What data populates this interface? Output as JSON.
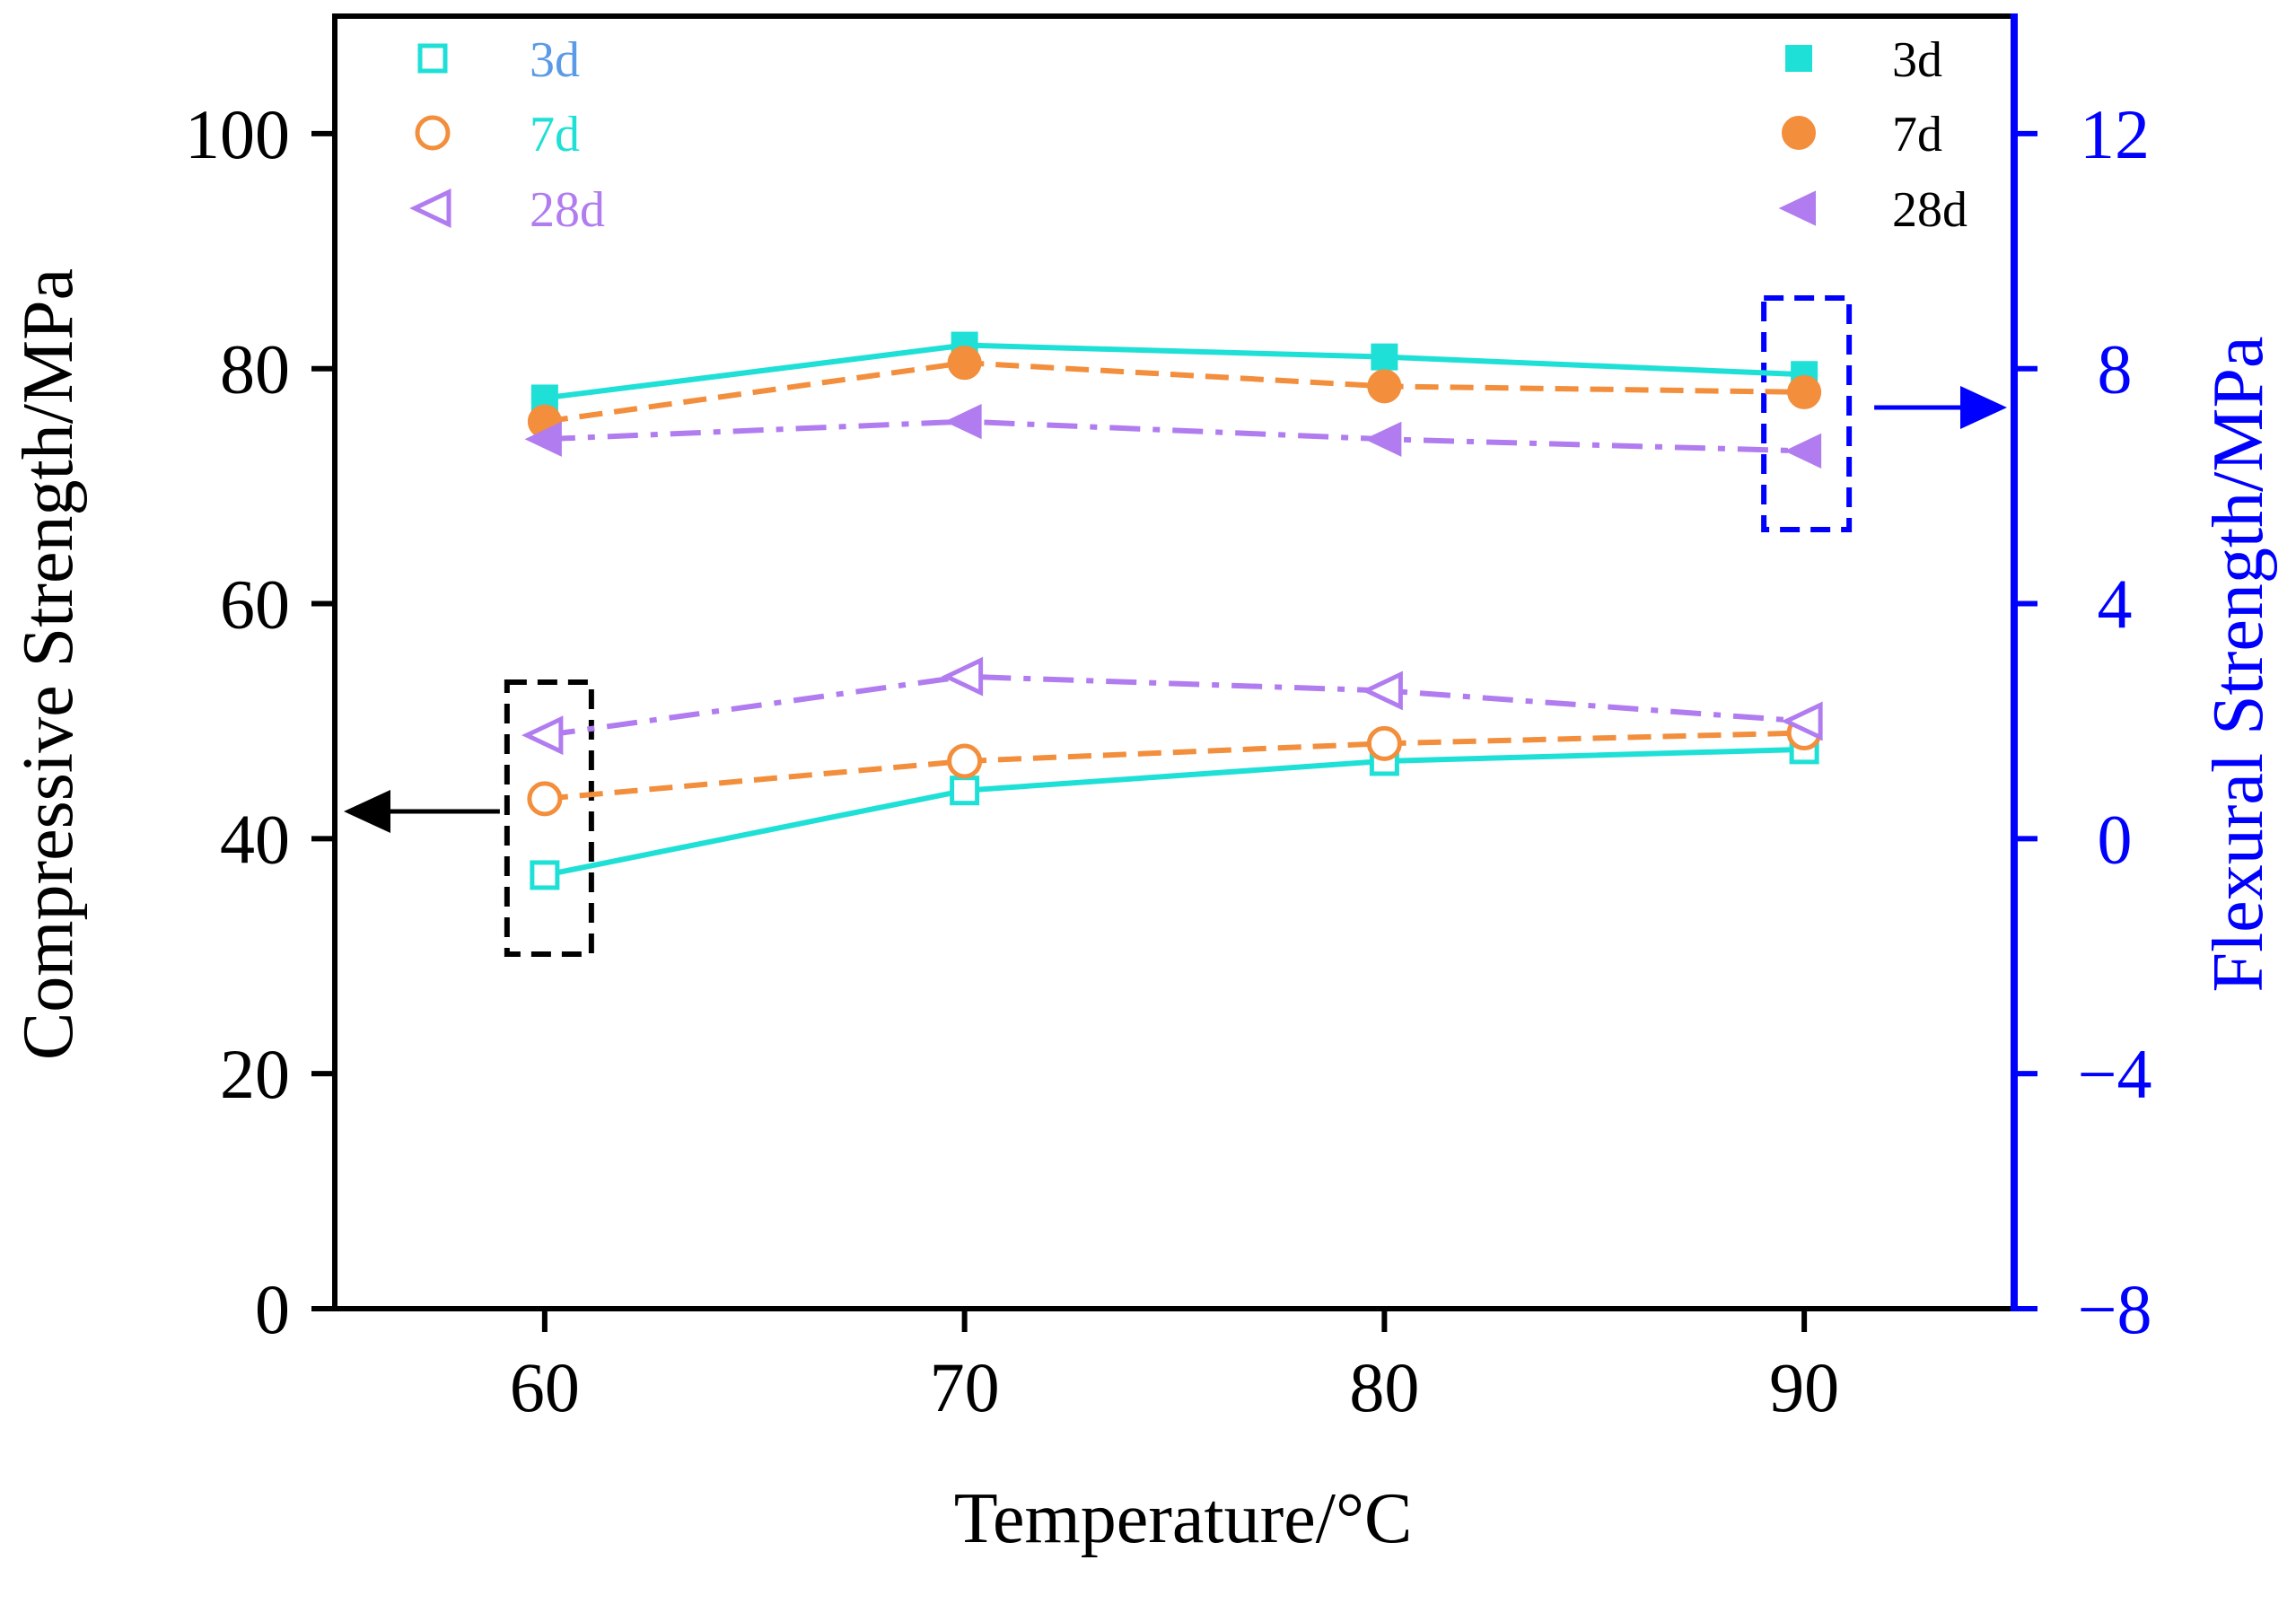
{
  "chart_data": {
    "type": "line",
    "xlabel": "Temperature/°C",
    "ylabel": "Compressive Strength/MPa",
    "y2label": "Flexural Strength/MPa",
    "xlim": [
      55,
      95
    ],
    "ylim": [
      0,
      110
    ],
    "y2lim": [
      -8,
      14
    ],
    "categories": [
      "60",
      "70",
      "80",
      "90"
    ],
    "x": [
      60,
      70,
      80,
      90
    ],
    "xticks": [
      60,
      70,
      80,
      90
    ],
    "yticks": [
      0,
      20,
      40,
      60,
      80,
      100
    ],
    "y2ticks": [
      -8,
      -4,
      0,
      4,
      8,
      12
    ],
    "y2tick_labels": [
      "−8",
      "−4",
      "0",
      "4",
      "8",
      "12"
    ],
    "grid": false,
    "series": [
      {
        "name": "3d",
        "axis": "left",
        "values": [
          36.9,
          44.1,
          46.6,
          47.6
        ],
        "color": "#1ee0d6",
        "marker": "square-open",
        "line": "solid"
      },
      {
        "name": "7d",
        "axis": "left",
        "values": [
          43.4,
          46.6,
          48.1,
          49.0
        ],
        "color": "#f28e3c",
        "marker": "circle-open",
        "line": "dash"
      },
      {
        "name": "28d",
        "axis": "left",
        "values": [
          48.8,
          53.8,
          52.6,
          50.0
        ],
        "color": "#b07cf0",
        "marker": "triangle-left-open",
        "line": "dashdot"
      },
      {
        "name": "3d",
        "axis": "right",
        "values": [
          7.5,
          8.4,
          8.2,
          7.9
        ],
        "color": "#1ee0d6",
        "marker": "square-filled",
        "line": "solid"
      },
      {
        "name": "7d",
        "axis": "right",
        "values": [
          7.1,
          8.1,
          7.7,
          7.6
        ],
        "color": "#f28e3c",
        "marker": "circle-filled",
        "line": "dash"
      },
      {
        "name": "28d",
        "axis": "right",
        "values": [
          6.8,
          7.1,
          6.8,
          6.6
        ],
        "color": "#b07cf0",
        "marker": "triangle-left-filled",
        "line": "dashdot"
      }
    ],
    "legend": {
      "left": {
        "placement": "top-left",
        "labels": [
          "3d",
          "7d",
          "28d"
        ],
        "label_colors": [
          "#5b9ae6",
          "#1ee0d6",
          "#b07cf0"
        ]
      },
      "right": {
        "placement": "top-right",
        "labels": [
          "3d",
          "7d",
          "28d"
        ],
        "label_colors": [
          "#000000",
          "#000000",
          "#000000"
        ]
      }
    },
    "annotations": [
      {
        "kind": "dashed-box-with-arrow",
        "at_x": 60,
        "points_to": "left axis",
        "color": "#000000"
      },
      {
        "kind": "dashed-box-with-arrow",
        "at_x": 90,
        "points_to": "right axis",
        "color": "#0000ff"
      }
    ],
    "colors": {
      "left_axis": "#000000",
      "right_axis": "#0000ff"
    }
  }
}
